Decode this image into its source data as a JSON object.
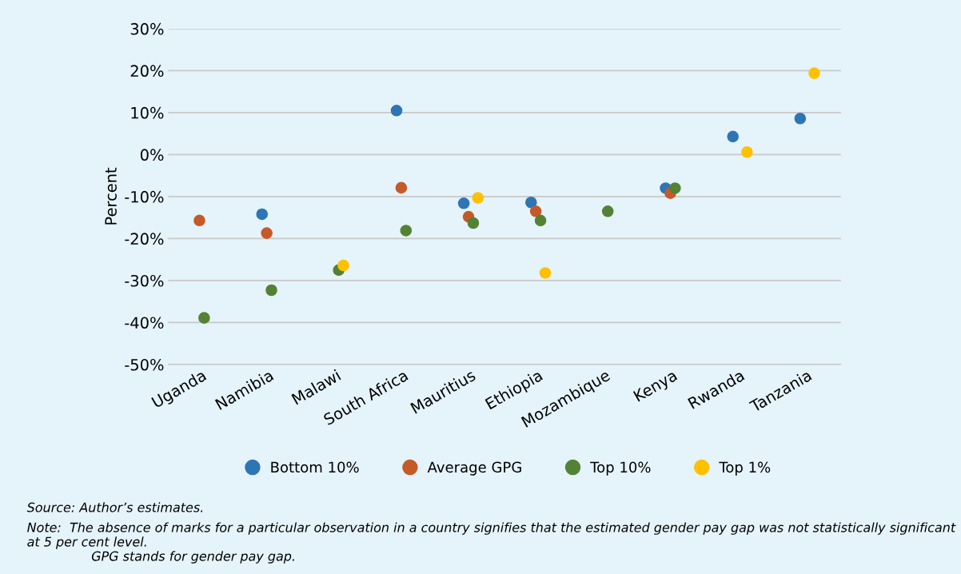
{
  "chart_data": {
    "type": "scatter",
    "ylabel": "Percent",
    "categories": [
      "Uganda",
      "Namibia",
      "Malawi",
      "South Africa",
      "Mauritius",
      "Ethiopia",
      "Mozambique",
      "Kenya",
      "Rwanda",
      "Tanzania"
    ],
    "series": [
      {
        "name": "Bottom 10%",
        "color": "#2e75b6",
        "values": [
          null,
          -14.2,
          null,
          10.5,
          -11.6,
          -11.4,
          null,
          -8.0,
          4.3,
          8.6
        ]
      },
      {
        "name": "Average GPG",
        "color": "#c55a28",
        "values": [
          -15.7,
          -18.7,
          null,
          -7.9,
          -14.8,
          -13.5,
          null,
          -9.2,
          null,
          null
        ]
      },
      {
        "name": "Top 10%",
        "color": "#548235",
        "values": [
          -38.9,
          -32.3,
          -27.5,
          -18.1,
          -16.3,
          -15.7,
          -13.5,
          -8.0,
          null,
          null
        ]
      },
      {
        "name": "Top 1%",
        "color": "#ffc000",
        "values": [
          null,
          null,
          -26.4,
          null,
          -10.3,
          -28.2,
          null,
          null,
          0.6,
          19.4
        ]
      }
    ],
    "ylim": [
      -50,
      30
    ],
    "yticks": [
      {
        "value": -50,
        "label": "-50%"
      },
      {
        "value": -40,
        "label": "-40%"
      },
      {
        "value": -30,
        "label": "-30%"
      },
      {
        "value": -20,
        "label": "-20%"
      },
      {
        "value": -10,
        "label": "-10%"
      },
      {
        "value": 0,
        "label": "0%"
      },
      {
        "value": 10,
        "label": "10%"
      },
      {
        "value": 20,
        "label": "20%"
      },
      {
        "value": 30,
        "label": "30%"
      }
    ],
    "grid": "y",
    "legend": "bottom",
    "marker": "circle",
    "annotations": [
      "Source: Author’s estimates.",
      "Note:  The absence of marks for a particular observation in a country signifies that the estimated gender pay gap was not statistically significant at 5 per cent level.",
      "GPG stands for gender pay gap."
    ]
  }
}
